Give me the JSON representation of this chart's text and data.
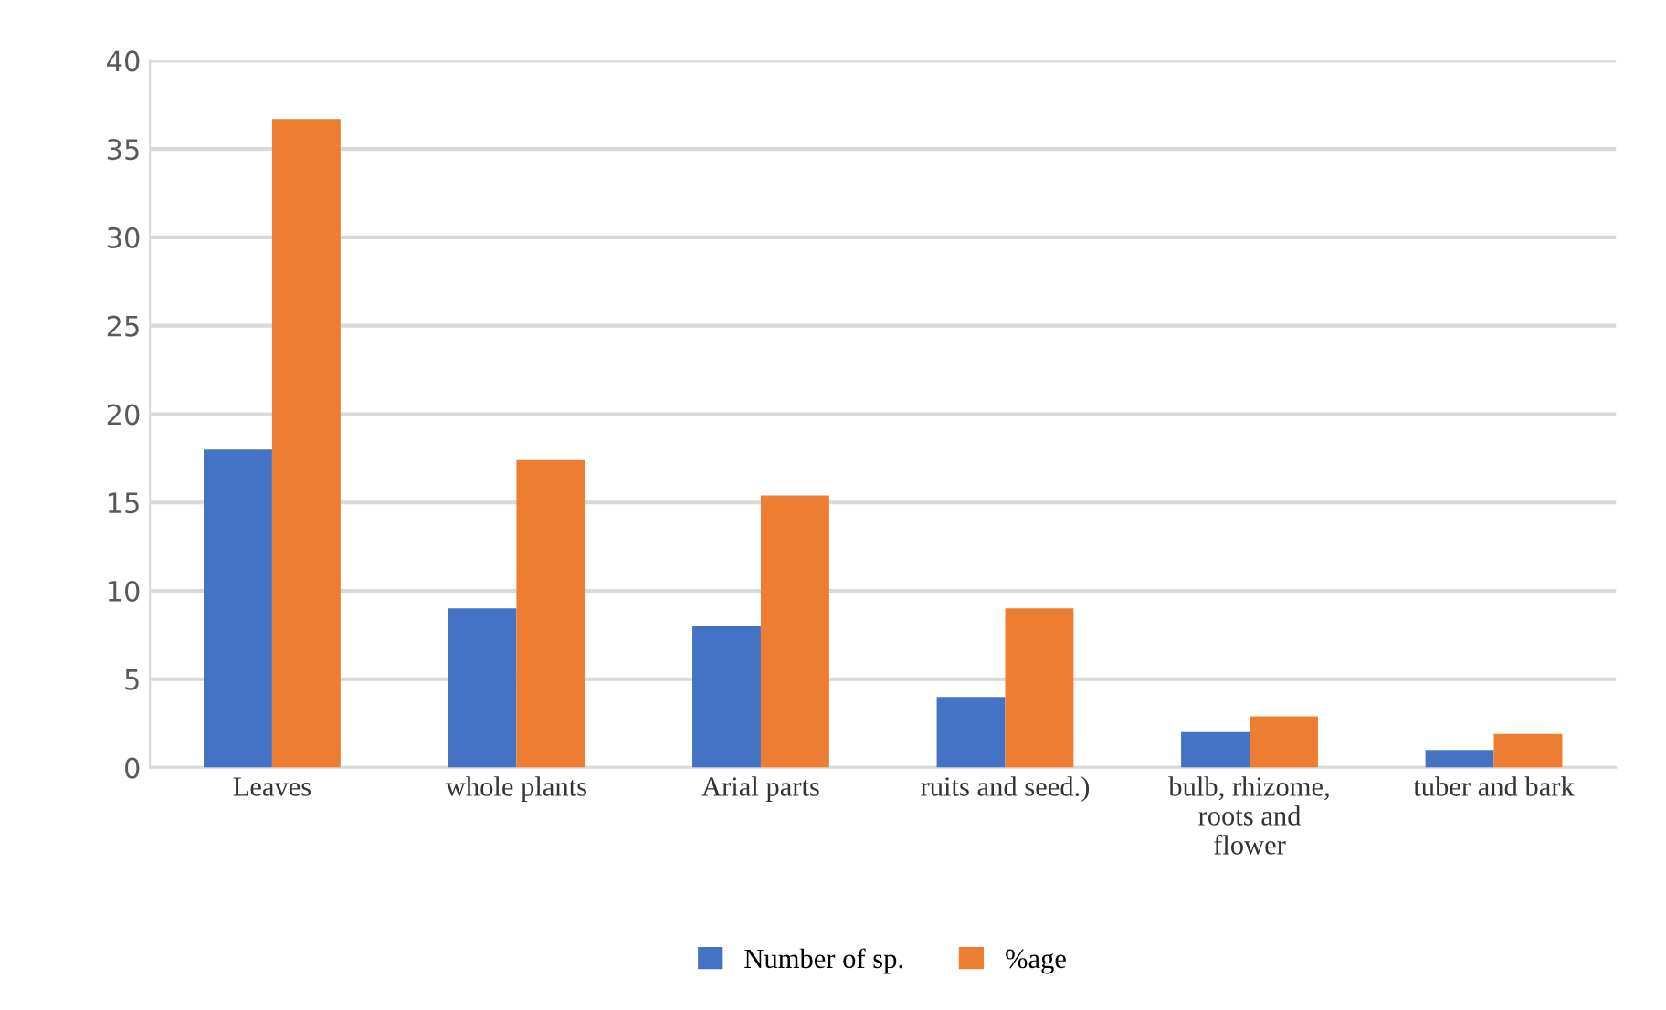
{
  "chart_data": {
    "type": "bar",
    "categories": [
      "Leaves",
      "whole plants",
      "Arial parts",
      "ruits and seed.)",
      "bulb, rhizome,\nroots and\nflower",
      "tuber and bark"
    ],
    "series": [
      {
        "name": "Number of sp.",
        "color": "#4472c4",
        "values": [
          18,
          9,
          8,
          4,
          2,
          1
        ]
      },
      {
        "name": "%age",
        "color": "#ed7d31",
        "values": [
          36.7,
          17.4,
          15.4,
          9.0,
          2.9,
          1.9
        ]
      }
    ],
    "ylim": [
      0,
      40
    ],
    "yticks": [
      0,
      5,
      10,
      15,
      20,
      25,
      30,
      35,
      40
    ],
    "grid": "y",
    "legend": "bottom"
  }
}
